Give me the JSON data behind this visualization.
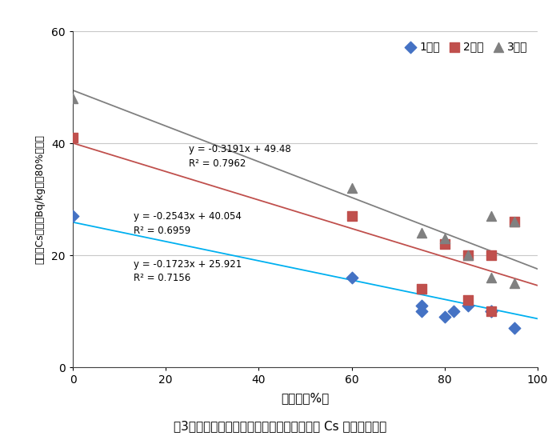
{
  "title": "図3　草地更新時の砕土率と牧草中の放射性 Cs 濃度との関係",
  "xlabel": "砕土率（%）",
  "ylabel": "放射性Cs濃度（Bq/kg水刈80%換算）",
  "xlim": [
    0,
    100
  ],
  "ylim": [
    0,
    60
  ],
  "xticks": [
    0,
    20,
    40,
    60,
    80,
    100
  ],
  "yticks": [
    0,
    20,
    40,
    60
  ],
  "series1": {
    "name": "1番草",
    "color": "#4472c4",
    "marker": "D",
    "x": [
      0,
      60,
      75,
      75,
      80,
      82,
      85,
      90,
      90,
      95
    ],
    "y": [
      27,
      16,
      11,
      10,
      9,
      10,
      11,
      10,
      10,
      7
    ]
  },
  "series2": {
    "name": "2番草",
    "color": "#c0504d",
    "marker": "s",
    "x": [
      0,
      60,
      75,
      80,
      85,
      85,
      90,
      90,
      95
    ],
    "y": [
      41,
      27,
      14,
      22,
      20,
      12,
      20,
      10,
      26
    ]
  },
  "series3": {
    "name": "3番草",
    "color": "#808080",
    "marker": "^",
    "x": [
      0,
      60,
      75,
      80,
      85,
      90,
      90,
      95,
      95
    ],
    "y": [
      48,
      32,
      24,
      23,
      20,
      27,
      16,
      26,
      15
    ]
  },
  "line1": {
    "slope": -0.1723,
    "intercept": 25.921,
    "color": "#00b0f0",
    "ann_x": 13,
    "ann_y": 17.5,
    "label1": "y = -0.1723x + 25.921",
    "label2": "R² = 0.7156"
  },
  "line2": {
    "slope": -0.2543,
    "intercept": 40.054,
    "color": "#c0504d",
    "ann_x": 13,
    "ann_y": 26,
    "label1": "y = -0.2543x + 40.054",
    "label2": "R² = 0.6959"
  },
  "line3": {
    "slope": -0.3191,
    "intercept": 49.48,
    "color": "#808080",
    "ann_x": 25,
    "ann_y": 38,
    "label1": "y = -0.3191x + 49.48",
    "label2": "R² = 0.7962"
  },
  "background_color": "#ffffff",
  "grid_color": "#c8c8c8",
  "caption": "図3　草地更新時の砕土率と牧草中の放射性 Cs 濃度との関係"
}
